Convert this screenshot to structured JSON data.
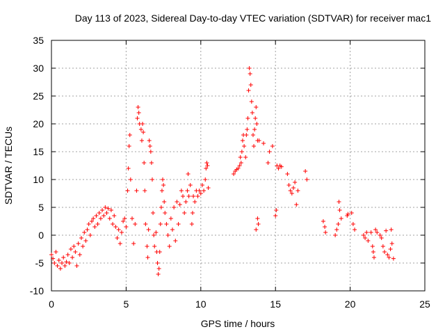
{
  "chart_data": {
    "type": "scatter",
    "title": "Day 113 of 2023, Sidereal Day-to-day VTEC variation (SDTVAR) for receiver mac1",
    "xlabel": "GPS time / hours",
    "ylabel": "SDTVAR / TECUs",
    "xlim": [
      0,
      25
    ],
    "ylim": [
      -10,
      35
    ],
    "xticks": [
      0,
      5,
      10,
      15,
      20,
      25
    ],
    "yticks": [
      -10,
      -5,
      0,
      5,
      10,
      15,
      20,
      25,
      30,
      35
    ],
    "grid": true,
    "marker": "+",
    "color": "#ff0000",
    "series": [
      {
        "name": "SDTVAR",
        "points": [
          [
            0.0,
            -3.5
          ],
          [
            0.1,
            -4.2
          ],
          [
            0.2,
            -5.0
          ],
          [
            0.3,
            -3.0
          ],
          [
            0.4,
            -5.5
          ],
          [
            0.5,
            -4.5
          ],
          [
            0.6,
            -6.0
          ],
          [
            0.7,
            -5.0
          ],
          [
            0.8,
            -4.0
          ],
          [
            0.9,
            -5.5
          ],
          [
            1.0,
            -4.8
          ],
          [
            1.1,
            -3.5
          ],
          [
            1.2,
            -5.0
          ],
          [
            1.3,
            -2.5
          ],
          [
            1.4,
            -4.0
          ],
          [
            1.5,
            -2.0
          ],
          [
            1.6,
            -3.0
          ],
          [
            1.7,
            -5.5
          ],
          [
            1.8,
            -1.5
          ],
          [
            1.9,
            -3.5
          ],
          [
            2.0,
            -0.5
          ],
          [
            2.1,
            -2.0
          ],
          [
            2.2,
            0.5
          ],
          [
            2.3,
            -1.0
          ],
          [
            2.4,
            1.0
          ],
          [
            2.5,
            2.0
          ],
          [
            2.6,
            0.0
          ],
          [
            2.7,
            2.5
          ],
          [
            2.8,
            3.0
          ],
          [
            2.9,
            1.5
          ],
          [
            3.0,
            3.5
          ],
          [
            3.1,
            2.0
          ],
          [
            3.2,
            4.0
          ],
          [
            3.3,
            3.0
          ],
          [
            3.4,
            4.5
          ],
          [
            3.5,
            3.5
          ],
          [
            3.6,
            5.0
          ],
          [
            3.7,
            4.0
          ],
          [
            3.8,
            4.8
          ],
          [
            3.9,
            3.0
          ],
          [
            4.0,
            4.5
          ],
          [
            4.1,
            2.0
          ],
          [
            4.2,
            3.5
          ],
          [
            4.3,
            1.5
          ],
          [
            4.4,
            -0.5
          ],
          [
            4.5,
            1.0
          ],
          [
            4.6,
            -1.5
          ],
          [
            4.7,
            0.5
          ],
          [
            4.8,
            2.5
          ],
          [
            4.9,
            3.0
          ],
          [
            5.0,
            1.5
          ],
          [
            5.1,
            8.0
          ],
          [
            5.15,
            12.0
          ],
          [
            5.2,
            16.0
          ],
          [
            5.25,
            18.0
          ],
          [
            5.3,
            10.0
          ],
          [
            5.4,
            3.0
          ],
          [
            5.5,
            -1.5
          ],
          [
            5.6,
            2.0
          ],
          [
            5.7,
            8.0
          ],
          [
            5.75,
            21.0
          ],
          [
            5.8,
            23.0
          ],
          [
            5.85,
            22.0
          ],
          [
            5.9,
            20.0
          ],
          [
            6.0,
            19.0
          ],
          [
            6.05,
            17.0
          ],
          [
            6.1,
            20.0
          ],
          [
            6.15,
            18.5
          ],
          [
            6.2,
            13.0
          ],
          [
            6.25,
            8.0
          ],
          [
            6.3,
            2.0
          ],
          [
            6.4,
            -2.0
          ],
          [
            6.45,
            -4.0
          ],
          [
            6.5,
            1.0
          ],
          [
            6.55,
            17.0
          ],
          [
            6.6,
            16.0
          ],
          [
            6.65,
            15.0
          ],
          [
            6.7,
            13.0
          ],
          [
            6.75,
            10.0
          ],
          [
            6.8,
            4.0
          ],
          [
            6.85,
            0.0
          ],
          [
            6.9,
            -2.0
          ],
          [
            7.0,
            0.5
          ],
          [
            7.05,
            -3.0
          ],
          [
            7.1,
            -5.0
          ],
          [
            7.15,
            -7.0
          ],
          [
            7.2,
            -6.0
          ],
          [
            7.25,
            -3.0
          ],
          [
            7.3,
            2.0
          ],
          [
            7.35,
            5.0
          ],
          [
            7.4,
            8.0
          ],
          [
            7.45,
            10.0
          ],
          [
            7.5,
            9.0
          ],
          [
            7.55,
            6.0
          ],
          [
            7.6,
            4.0
          ],
          [
            7.7,
            2.0
          ],
          [
            7.8,
            0.0
          ],
          [
            7.9,
            -2.0
          ],
          [
            8.0,
            3.0
          ],
          [
            8.1,
            1.0
          ],
          [
            8.2,
            5.0
          ],
          [
            8.3,
            -1.0
          ],
          [
            8.4,
            6.0
          ],
          [
            8.5,
            2.0
          ],
          [
            8.6,
            5.5
          ],
          [
            8.7,
            8.0
          ],
          [
            8.8,
            7.0
          ],
          [
            8.9,
            4.0
          ],
          [
            9.0,
            6.0
          ],
          [
            9.1,
            8.0
          ],
          [
            9.15,
            11.0
          ],
          [
            9.2,
            7.0
          ],
          [
            9.3,
            9.0
          ],
          [
            9.4,
            2.0
          ],
          [
            9.45,
            4.0
          ],
          [
            9.5,
            7.0
          ],
          [
            9.6,
            6.0
          ],
          [
            9.7,
            8.0
          ],
          [
            9.8,
            7.0
          ],
          [
            9.9,
            8.0
          ],
          [
            10.0,
            7.5
          ],
          [
            10.1,
            9.0
          ],
          [
            10.2,
            8.0
          ],
          [
            10.3,
            10.0
          ],
          [
            10.35,
            12.0
          ],
          [
            10.4,
            13.0
          ],
          [
            10.45,
            12.5
          ],
          [
            10.5,
            8.5
          ],
          [
            12.2,
            11.0
          ],
          [
            12.3,
            11.5
          ],
          [
            12.4,
            11.8
          ],
          [
            12.5,
            12.0
          ],
          [
            12.6,
            12.5
          ],
          [
            12.65,
            14.0
          ],
          [
            12.7,
            13.0
          ],
          [
            12.75,
            15.0
          ],
          [
            12.8,
            17.0
          ],
          [
            12.85,
            18.0
          ],
          [
            12.9,
            16.0
          ],
          [
            13.0,
            14.0
          ],
          [
            13.05,
            18.0
          ],
          [
            13.1,
            19.0
          ],
          [
            13.15,
            21.0
          ],
          [
            13.2,
            26.0
          ],
          [
            13.25,
            30.0
          ],
          [
            13.3,
            29.0
          ],
          [
            13.35,
            27.0
          ],
          [
            13.4,
            24.0
          ],
          [
            13.45,
            22.0
          ],
          [
            13.5,
            18.0
          ],
          [
            13.55,
            16.0
          ],
          [
            13.6,
            19.0
          ],
          [
            13.65,
            21.0
          ],
          [
            13.7,
            23.0
          ],
          [
            13.75,
            20.0
          ],
          [
            13.8,
            17.0
          ],
          [
            13.7,
            1.0
          ],
          [
            13.8,
            3.0
          ],
          [
            13.85,
            2.0
          ],
          [
            13.9,
            17.0
          ],
          [
            14.2,
            16.5
          ],
          [
            14.5,
            13.0
          ],
          [
            14.6,
            15.0
          ],
          [
            14.8,
            16.0
          ],
          [
            15.0,
            3.5
          ],
          [
            15.05,
            4.5
          ],
          [
            15.1,
            12.5
          ],
          [
            15.2,
            12.0
          ],
          [
            15.3,
            12.5
          ],
          [
            15.4,
            12.3
          ],
          [
            15.8,
            11.0
          ],
          [
            15.9,
            9.0
          ],
          [
            16.0,
            8.0
          ],
          [
            16.1,
            7.5
          ],
          [
            16.2,
            8.5
          ],
          [
            16.3,
            9.5
          ],
          [
            16.4,
            5.5
          ],
          [
            16.5,
            8.0
          ],
          [
            17.0,
            11.5
          ],
          [
            17.1,
            10.0
          ],
          [
            18.2,
            2.5
          ],
          [
            18.3,
            1.5
          ],
          [
            18.35,
            0.5
          ],
          [
            19.0,
            0.0
          ],
          [
            19.1,
            1.0
          ],
          [
            19.2,
            2.0
          ],
          [
            19.25,
            6.0
          ],
          [
            19.3,
            4.5
          ],
          [
            19.4,
            3.0
          ],
          [
            19.8,
            3.5
          ],
          [
            19.85,
            3.8
          ],
          [
            20.1,
            4.0
          ],
          [
            20.2,
            2.0
          ],
          [
            20.3,
            1.0
          ],
          [
            20.9,
            0.0
          ],
          [
            21.0,
            -0.5
          ],
          [
            21.1,
            0.5
          ],
          [
            21.2,
            -1.0
          ],
          [
            21.4,
            0.5
          ],
          [
            21.5,
            -2.0
          ],
          [
            21.55,
            -3.0
          ],
          [
            21.6,
            -4.0
          ],
          [
            21.7,
            1.0
          ],
          [
            21.8,
            0.5
          ],
          [
            22.0,
            0.0
          ],
          [
            22.1,
            -0.5
          ],
          [
            22.2,
            -2.0
          ],
          [
            22.3,
            -3.0
          ],
          [
            22.4,
            0.8
          ],
          [
            22.5,
            -3.5
          ],
          [
            22.6,
            -4.0
          ],
          [
            22.7,
            -2.5
          ],
          [
            22.75,
            1.0
          ],
          [
            22.8,
            -1.5
          ],
          [
            22.9,
            -4.2
          ]
        ]
      }
    ]
  }
}
